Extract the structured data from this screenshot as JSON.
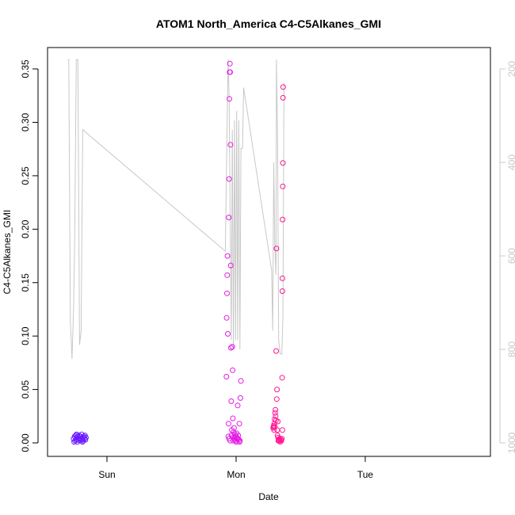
{
  "chart_data": {
    "type": "scatter",
    "title": "ATOM1 North_America C4-C5Alkanes_GMI",
    "xlabel": "Date",
    "ylabel": "C4-C5Alkanes_GMI",
    "x_ticks": [
      "Sun",
      "Mon",
      "Tue"
    ],
    "y_ticks": [
      "0.00",
      "0.05",
      "0.10",
      "0.15",
      "0.20",
      "0.25",
      "0.30",
      "0.35"
    ],
    "ylim": [
      0,
      0.37
    ],
    "y2_ticks": [
      "200",
      "400",
      "600",
      "800",
      "1000"
    ],
    "y2lim": [
      1010,
      180
    ],
    "grid": false,
    "legend": "none",
    "colors": {
      "pressure_line": "#c8c8c8",
      "blue": "#6a1bff",
      "magenta": "#e41ae4",
      "pink": "#ff1493",
      "axis": "#000000"
    },
    "x_range_hours": [
      -8,
      35
    ],
    "points": [
      {
        "x": -6.2,
        "y": 0.004,
        "c": "blue"
      },
      {
        "x": -6.0,
        "y": 0.006,
        "c": "blue"
      },
      {
        "x": -5.9,
        "y": 0.002,
        "c": "blue"
      },
      {
        "x": -5.8,
        "y": 0.007,
        "c": "blue"
      },
      {
        "x": -5.7,
        "y": 0.003,
        "c": "blue"
      },
      {
        "x": -5.6,
        "y": 0.005,
        "c": "blue"
      },
      {
        "x": -5.5,
        "y": 0.001,
        "c": "blue"
      },
      {
        "x": -5.4,
        "y": 0.006,
        "c": "blue"
      },
      {
        "x": -5.3,
        "y": 0.003,
        "c": "blue"
      },
      {
        "x": -5.2,
        "y": 0.007,
        "c": "blue"
      },
      {
        "x": -5.1,
        "y": 0.004,
        "c": "blue"
      },
      {
        "x": -5.0,
        "y": 0.002,
        "c": "blue"
      },
      {
        "x": -4.9,
        "y": 0.006,
        "c": "blue"
      },
      {
        "x": -4.8,
        "y": 0.004,
        "c": "blue"
      },
      {
        "x": -4.7,
        "y": 0.008,
        "c": "blue"
      },
      {
        "x": -4.6,
        "y": 0.003,
        "c": "blue"
      },
      {
        "x": -4.5,
        "y": 0.005,
        "c": "blue"
      },
      {
        "x": -4.4,
        "y": 0.002,
        "c": "blue"
      },
      {
        "x": -4.3,
        "y": 0.006,
        "c": "blue"
      },
      {
        "x": -4.2,
        "y": 0.004,
        "c": "blue"
      },
      {
        "x": -4.1,
        "y": 0.007,
        "c": "blue"
      },
      {
        "x": -4.0,
        "y": 0.003,
        "c": "blue"
      },
      {
        "x": -3.9,
        "y": 0.005,
        "c": "blue"
      },
      {
        "x": -6.1,
        "y": 0.001,
        "c": "blue"
      },
      {
        "x": -5.65,
        "y": 0.008,
        "c": "blue"
      },
      {
        "x": -4.55,
        "y": 0.001,
        "c": "blue"
      },
      {
        "x": 22.2,
        "y": 0.062,
        "c": "magenta"
      },
      {
        "x": 22.25,
        "y": 0.117,
        "c": "magenta"
      },
      {
        "x": 22.3,
        "y": 0.14,
        "c": "magenta"
      },
      {
        "x": 22.35,
        "y": 0.157,
        "c": "magenta"
      },
      {
        "x": 22.4,
        "y": 0.175,
        "c": "magenta"
      },
      {
        "x": 22.45,
        "y": 0.102,
        "c": "magenta"
      },
      {
        "x": 22.55,
        "y": 0.006,
        "c": "magenta"
      },
      {
        "x": 22.6,
        "y": 0.018,
        "c": "magenta"
      },
      {
        "x": 22.65,
        "y": 0.211,
        "c": "magenta"
      },
      {
        "x": 22.7,
        "y": 0.247,
        "c": "magenta"
      },
      {
        "x": 22.75,
        "y": 0.322,
        "c": "magenta"
      },
      {
        "x": 22.8,
        "y": 0.347,
        "c": "magenta"
      },
      {
        "x": 22.85,
        "y": 0.355,
        "c": "magenta"
      },
      {
        "x": 22.9,
        "y": 0.347,
        "c": "magenta"
      },
      {
        "x": 22.95,
        "y": 0.279,
        "c": "magenta"
      },
      {
        "x": 23.0,
        "y": 0.166,
        "c": "magenta"
      },
      {
        "x": 23.05,
        "y": 0.089,
        "c": "magenta"
      },
      {
        "x": 23.1,
        "y": 0.039,
        "c": "magenta"
      },
      {
        "x": 23.2,
        "y": 0.012,
        "c": "magenta"
      },
      {
        "x": 23.3,
        "y": 0.09,
        "c": "magenta"
      },
      {
        "x": 23.35,
        "y": 0.068,
        "c": "magenta"
      },
      {
        "x": 23.4,
        "y": 0.023,
        "c": "magenta"
      },
      {
        "x": 23.5,
        "y": 0.005,
        "c": "magenta"
      },
      {
        "x": 23.6,
        "y": 0.014,
        "c": "magenta"
      },
      {
        "x": 23.7,
        "y": 0.003,
        "c": "magenta"
      },
      {
        "x": 23.8,
        "y": 0.008,
        "c": "magenta"
      },
      {
        "x": 23.9,
        "y": 0.002,
        "c": "magenta"
      },
      {
        "x": 24.0,
        "y": 0.006,
        "c": "magenta"
      },
      {
        "x": 24.1,
        "y": 0.009,
        "c": "magenta"
      },
      {
        "x": 24.2,
        "y": 0.004,
        "c": "magenta"
      },
      {
        "x": 24.3,
        "y": 0.035,
        "c": "magenta"
      },
      {
        "x": 24.4,
        "y": 0.007,
        "c": "magenta"
      },
      {
        "x": 24.5,
        "y": 0.003,
        "c": "magenta"
      },
      {
        "x": 24.6,
        "y": 0.018,
        "c": "magenta"
      },
      {
        "x": 24.7,
        "y": 0.002,
        "c": "magenta"
      },
      {
        "x": 24.8,
        "y": 0.042,
        "c": "magenta"
      },
      {
        "x": 24.9,
        "y": 0.058,
        "c": "magenta"
      },
      {
        "x": 22.7,
        "y": 0.004,
        "c": "magenta"
      },
      {
        "x": 22.9,
        "y": 0.002,
        "c": "magenta"
      },
      {
        "x": 23.15,
        "y": 0.007,
        "c": "magenta"
      },
      {
        "x": 23.45,
        "y": 0.002,
        "c": "magenta"
      },
      {
        "x": 23.75,
        "y": 0.005,
        "c": "magenta"
      },
      {
        "x": 24.05,
        "y": 0.001,
        "c": "magenta"
      },
      {
        "x": 24.35,
        "y": 0.004,
        "c": "magenta"
      },
      {
        "x": 24.65,
        "y": 0.001,
        "c": "magenta"
      },
      {
        "x": 23.55,
        "y": 0.01,
        "c": "magenta"
      },
      {
        "x": 30.9,
        "y": 0.014,
        "c": "pink"
      },
      {
        "x": 31.0,
        "y": 0.016,
        "c": "pink"
      },
      {
        "x": 31.05,
        "y": 0.012,
        "c": "pink"
      },
      {
        "x": 31.1,
        "y": 0.018,
        "c": "pink"
      },
      {
        "x": 31.15,
        "y": 0.022,
        "c": "pink"
      },
      {
        "x": 31.2,
        "y": 0.015,
        "c": "pink"
      },
      {
        "x": 31.25,
        "y": 0.028,
        "c": "pink"
      },
      {
        "x": 31.3,
        "y": 0.031,
        "c": "pink"
      },
      {
        "x": 31.35,
        "y": 0.025,
        "c": "pink"
      },
      {
        "x": 31.4,
        "y": 0.021,
        "c": "pink"
      },
      {
        "x": 31.45,
        "y": 0.086,
        "c": "pink"
      },
      {
        "x": 31.5,
        "y": 0.182,
        "c": "pink"
      },
      {
        "x": 31.55,
        "y": 0.041,
        "c": "pink"
      },
      {
        "x": 31.6,
        "y": 0.05,
        "c": "pink"
      },
      {
        "x": 31.65,
        "y": 0.012,
        "c": "pink"
      },
      {
        "x": 31.7,
        "y": 0.007,
        "c": "pink"
      },
      {
        "x": 31.75,
        "y": 0.02,
        "c": "pink"
      },
      {
        "x": 31.8,
        "y": 0.005,
        "c": "pink"
      },
      {
        "x": 31.9,
        "y": 0.003,
        "c": "pink"
      },
      {
        "x": 32.0,
        "y": 0.002,
        "c": "pink"
      },
      {
        "x": 32.1,
        "y": 0.004,
        "c": "pink"
      },
      {
        "x": 32.2,
        "y": 0.001,
        "c": "pink"
      },
      {
        "x": 32.3,
        "y": 0.003,
        "c": "pink"
      },
      {
        "x": 32.4,
        "y": 0.002,
        "c": "pink"
      },
      {
        "x": 32.5,
        "y": 0.004,
        "c": "pink"
      },
      {
        "x": 32.55,
        "y": 0.061,
        "c": "pink"
      },
      {
        "x": 32.6,
        "y": 0.142,
        "c": "pink"
      },
      {
        "x": 32.62,
        "y": 0.154,
        "c": "pink"
      },
      {
        "x": 32.65,
        "y": 0.209,
        "c": "pink"
      },
      {
        "x": 32.67,
        "y": 0.24,
        "c": "pink"
      },
      {
        "x": 32.7,
        "y": 0.262,
        "c": "pink"
      },
      {
        "x": 32.72,
        "y": 0.323,
        "c": "pink"
      },
      {
        "x": 32.75,
        "y": 0.333,
        "c": "pink"
      },
      {
        "x": 32.6,
        "y": 0.012,
        "c": "pink"
      },
      {
        "x": 30.95,
        "y": 0.015,
        "c": "pink"
      },
      {
        "x": 31.85,
        "y": 0.002,
        "c": "pink"
      },
      {
        "x": 32.35,
        "y": 0.003,
        "c": "pink"
      }
    ],
    "pressure_line": [
      {
        "x": -7.3,
        "p": 180
      },
      {
        "x": -7.1,
        "p": 180
      },
      {
        "x": -6.8,
        "p": 740
      },
      {
        "x": -6.5,
        "p": 820
      },
      {
        "x": -6.2,
        "p": 710
      },
      {
        "x": -6.0,
        "p": 560
      },
      {
        "x": -5.7,
        "p": 180
      },
      {
        "x": -5.4,
        "p": 180
      },
      {
        "x": -5.1,
        "p": 790
      },
      {
        "x": -4.8,
        "p": 760
      },
      {
        "x": -4.5,
        "p": 330
      },
      {
        "x": 22.0,
        "p": 590
      },
      {
        "x": 22.5,
        "p": 180
      },
      {
        "x": 22.7,
        "p": 260
      },
      {
        "x": 22.9,
        "p": 520
      },
      {
        "x": 23.1,
        "p": 780
      },
      {
        "x": 23.3,
        "p": 330
      },
      {
        "x": 23.5,
        "p": 800
      },
      {
        "x": 23.7,
        "p": 310
      },
      {
        "x": 23.9,
        "p": 780
      },
      {
        "x": 24.1,
        "p": 290
      },
      {
        "x": 24.3,
        "p": 780
      },
      {
        "x": 24.5,
        "p": 310
      },
      {
        "x": 24.7,
        "p": 800
      },
      {
        "x": 24.9,
        "p": 370
      },
      {
        "x": 25.2,
        "p": 370
      },
      {
        "x": 25.4,
        "p": 240
      },
      {
        "x": 30.6,
        "p": 630
      },
      {
        "x": 30.8,
        "p": 760
      },
      {
        "x": 31.0,
        "p": 400
      },
      {
        "x": 31.2,
        "p": 580
      },
      {
        "x": 31.4,
        "p": 640
      },
      {
        "x": 31.5,
        "p": 180
      },
      {
        "x": 31.7,
        "p": 340
      },
      {
        "x": 31.9,
        "p": 780
      },
      {
        "x": 32.2,
        "p": 810
      },
      {
        "x": 32.5,
        "p": 810
      },
      {
        "x": 32.7,
        "p": 730
      },
      {
        "x": 32.9,
        "p": 230
      }
    ]
  }
}
